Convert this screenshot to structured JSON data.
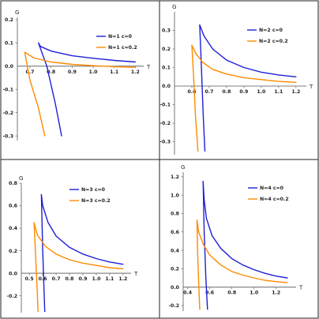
{
  "chart_data": [
    {
      "type": "line",
      "xlabel": "T",
      "ylabel": "G",
      "xlim": [
        0.64,
        1.24
      ],
      "ylim": [
        -0.32,
        0.21
      ],
      "x_ticks": [
        0.7,
        0.8,
        0.9,
        1.0,
        1.1,
        1.2
      ],
      "y_ticks": [
        -0.3,
        -0.2,
        -0.1,
        0.1,
        0.2
      ],
      "x_tick_labels": [
        "0.7",
        "0.8",
        "0.9",
        "1.0",
        "1.1",
        "1.2"
      ],
      "y_tick_labels": [
        "-0.3",
        "-0.2",
        "-0.1",
        "0.1",
        "0.2"
      ],
      "zero_label": "0.0",
      "legend": "top-right",
      "series": [
        {
          "name": "N=1  c=0",
          "color": "#1f1fd6",
          "x": [
            1.2,
            1.1,
            1.0,
            0.9,
            0.8,
            0.75,
            0.74,
            0.78,
            0.82,
            0.85
          ],
          "y": [
            0.018,
            0.025,
            0.034,
            0.045,
            0.065,
            0.085,
            0.1,
            0.0,
            -0.16,
            -0.3
          ]
        },
        {
          "name": "N=1  c=0.2",
          "color": "#ff8a00",
          "x": [
            1.2,
            1.1,
            1.0,
            0.9,
            0.8,
            0.72,
            0.675,
            0.7,
            0.74,
            0.77
          ],
          "y": [
            -0.005,
            -0.002,
            0.002,
            0.008,
            0.018,
            0.035,
            0.06,
            -0.06,
            -0.18,
            -0.3
          ]
        }
      ]
    },
    {
      "type": "line",
      "xlabel": "T",
      "ylabel": "G",
      "xlim": [
        0.5,
        1.26
      ],
      "ylim": [
        -0.37,
        0.4
      ],
      "x_ticks": [
        0.6,
        0.7,
        0.8,
        0.9,
        1.0,
        1.1,
        1.2
      ],
      "y_ticks": [
        -0.3,
        -0.2,
        -0.1,
        0.1,
        0.2,
        0.3
      ],
      "x_tick_labels": [
        "0.6",
        "0.7",
        "0.8",
        "0.9",
        "1.0",
        "1.1",
        "1.2"
      ],
      "y_tick_labels": [
        "-0.3",
        "-0.2",
        "-0.1",
        "0.1",
        "0.2",
        "0.3"
      ],
      "zero_label": "0.0",
      "legend": "top-right",
      "series": [
        {
          "name": "N=2  c=0",
          "color": "#1f1fd6",
          "x": [
            1.2,
            1.1,
            1.0,
            0.9,
            0.8,
            0.72,
            0.67,
            0.645,
            0.655,
            0.665,
            0.675
          ],
          "y": [
            0.05,
            0.06,
            0.075,
            0.1,
            0.14,
            0.2,
            0.27,
            0.33,
            0.1,
            -0.15,
            -0.35
          ]
        },
        {
          "name": "N=2  c=0.2",
          "color": "#ff8a00",
          "x": [
            1.2,
            1.1,
            1.0,
            0.9,
            0.8,
            0.72,
            0.66,
            0.62,
            0.6,
            0.61,
            0.62,
            0.635
          ],
          "y": [
            0.02,
            0.025,
            0.035,
            0.045,
            0.065,
            0.09,
            0.13,
            0.18,
            0.22,
            0.05,
            -0.15,
            -0.35
          ]
        }
      ]
    },
    {
      "type": "line",
      "xlabel": "T",
      "ylabel": "G",
      "xlim": [
        0.44,
        1.26
      ],
      "ylim": [
        -0.35,
        0.8
      ],
      "x_ticks": [
        0.5,
        0.6,
        0.7,
        0.8,
        0.9,
        1.0,
        1.1,
        1.2
      ],
      "y_ticks": [
        -0.2,
        0.2,
        0.4,
        0.6,
        0.8
      ],
      "x_tick_labels": [
        "0.5",
        "0.6",
        "0.7",
        "0.8",
        "0.9",
        "1.0",
        "1.1",
        "1.2"
      ],
      "y_tick_labels": [
        "-0.2",
        "0.2",
        "0.4",
        "0.6",
        "0.8"
      ],
      "zero_label": "0.0",
      "legend": "top-right",
      "series": [
        {
          "name": "N=3  c=0",
          "color": "#1f1fd6",
          "x": [
            1.2,
            1.1,
            1.0,
            0.9,
            0.8,
            0.7,
            0.64,
            0.6,
            0.59,
            0.6,
            0.615
          ],
          "y": [
            0.08,
            0.1,
            0.13,
            0.17,
            0.23,
            0.33,
            0.45,
            0.6,
            0.7,
            0.2,
            -0.34
          ]
        },
        {
          "name": "N=3  c=0.2",
          "color": "#ff8a00",
          "x": [
            1.2,
            1.1,
            1.0,
            0.9,
            0.8,
            0.7,
            0.62,
            0.56,
            0.535,
            0.545,
            0.555,
            0.565
          ],
          "y": [
            0.04,
            0.05,
            0.07,
            0.09,
            0.12,
            0.17,
            0.24,
            0.34,
            0.45,
            0.2,
            -0.05,
            -0.34
          ]
        }
      ]
    },
    {
      "type": "line",
      "xlabel": "T",
      "ylabel": "G",
      "xlim": [
        0.36,
        1.38
      ],
      "ylim": [
        -0.26,
        1.25
      ],
      "x_ticks": [
        0.4,
        0.6,
        0.8,
        1.0,
        1.2
      ],
      "y_ticks": [
        -0.2,
        0.2,
        0.4,
        0.6,
        0.8,
        1.0,
        1.2
      ],
      "x_tick_labels": [
        "0.4",
        "0.6",
        "0.8",
        "1.0",
        "1.2"
      ],
      "y_tick_labels": [
        "-0.2",
        "0.2",
        "0.4",
        "0.6",
        "0.8",
        "1.0",
        "1.2"
      ],
      "zero_label": "0.0",
      "legend": "top-right",
      "series": [
        {
          "name": "N=4  c=0",
          "color": "#1f1fd6",
          "x": [
            1.3,
            1.2,
            1.1,
            1.0,
            0.9,
            0.8,
            0.7,
            0.62,
            0.57,
            0.55,
            0.54,
            0.55,
            0.565,
            0.58
          ],
          "y": [
            0.1,
            0.12,
            0.15,
            0.19,
            0.24,
            0.31,
            0.42,
            0.56,
            0.75,
            0.95,
            1.15,
            0.6,
            0.1,
            -0.24
          ]
        },
        {
          "name": "N=4  c=0.2",
          "color": "#ff8a00",
          "x": [
            1.3,
            1.2,
            1.1,
            1.0,
            0.9,
            0.8,
            0.7,
            0.6,
            0.54,
            0.5,
            0.485,
            0.49,
            0.5,
            0.51
          ],
          "y": [
            0.05,
            0.06,
            0.075,
            0.1,
            0.13,
            0.17,
            0.24,
            0.35,
            0.47,
            0.6,
            0.73,
            0.4,
            0.05,
            -0.24
          ]
        }
      ]
    }
  ]
}
